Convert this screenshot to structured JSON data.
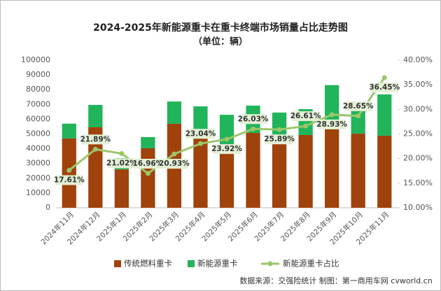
{
  "chart_data": {
    "type": "bar",
    "stacked": true,
    "title": "2024-2025年新能源重卡在重卡终端市场销量占比走势图",
    "subtitle": "（单位：辆）",
    "source": "数据来源：交强险统计  制图：第一商用车网 cvworld.cn",
    "categories": [
      "2024年11月",
      "2024年12月",
      "2025年1月",
      "2025年2月",
      "2025年3月",
      "2025年4月",
      "2025年5月",
      "2025年6月",
      "2025年7月",
      "2025年8月",
      "2025年9月",
      "2025年10月",
      "2025年11月"
    ],
    "series": [
      {
        "name": "传统燃料重卡",
        "type": "bar",
        "color": "#a0420c",
        "values": [
          47000,
          54500,
          26000,
          40300,
          56900,
          53100,
          43100,
          50700,
          47900,
          49300,
          58800,
          50200,
          48800
        ]
      },
      {
        "name": "新能源重卡",
        "type": "bar",
        "color": "#22b45a",
        "values": [
          10000,
          15200,
          7600,
          7600,
          15100,
          15600,
          19900,
          18500,
          16600,
          17500,
          24300,
          20100,
          28000
        ]
      },
      {
        "name": "新能源重卡占比",
        "type": "line",
        "axis": "y2",
        "color": "#9cc66a",
        "values": [
          17.61,
          21.89,
          21.02,
          16.96,
          20.93,
          23.04,
          23.92,
          26.03,
          25.89,
          26.61,
          28.93,
          28.65,
          36.45
        ],
        "value_labels": [
          "17.61%",
          "21.89%",
          "21.02%",
          "16.96%",
          "20.93%",
          "23.04%",
          "23.92%",
          "26.03%",
          "25.89%",
          "26.61%",
          "28.93%",
          "28.65%",
          "36.45%"
        ]
      }
    ],
    "ylim": [
      0,
      100000
    ],
    "yticks": [
      0,
      10000,
      20000,
      30000,
      40000,
      50000,
      60000,
      70000,
      80000,
      90000,
      100000
    ],
    "y2lim": [
      10,
      40
    ],
    "y2ticks": [
      {
        "value": 10,
        "label": "10.00%"
      },
      {
        "value": 15,
        "label": "15.00%"
      },
      {
        "value": 20,
        "label": "20.00%"
      },
      {
        "value": 25,
        "label": "25.00%"
      },
      {
        "value": 30,
        "label": "30.00%"
      },
      {
        "value": 35,
        "label": "35.00%"
      },
      {
        "value": 40,
        "label": "40.00%"
      }
    ],
    "grid": false,
    "legend": "bottom"
  }
}
